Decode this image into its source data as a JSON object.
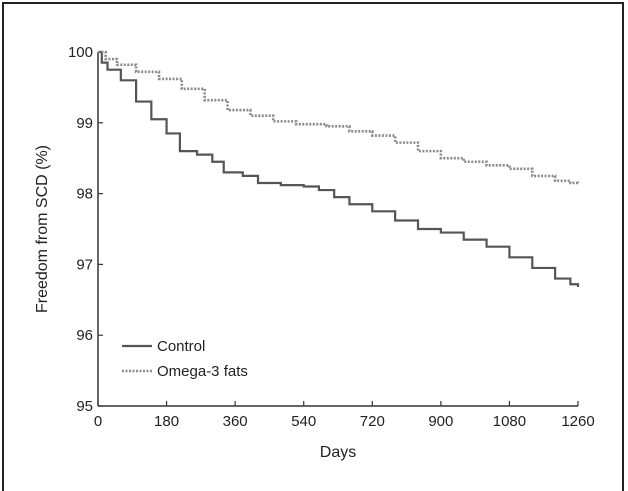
{
  "chart_data": {
    "type": "line",
    "title": "",
    "xlabel": "Days",
    "ylabel": "Freedom from SCD (%)",
    "xlim": [
      0,
      1260
    ],
    "ylim": [
      95,
      100
    ],
    "xticks": [
      0,
      180,
      360,
      540,
      720,
      900,
      1080,
      1260
    ],
    "yticks": [
      95,
      96,
      97,
      98,
      99,
      100
    ],
    "grid": false,
    "legend_position": "bottom-left",
    "series": [
      {
        "name": "Control",
        "color": "#555555",
        "style": "solid",
        "x": [
          0,
          10,
          25,
          60,
          100,
          140,
          180,
          215,
          260,
          300,
          330,
          380,
          420,
          480,
          540,
          580,
          620,
          660,
          720,
          780,
          840,
          900,
          960,
          1020,
          1080,
          1140,
          1200,
          1240,
          1260
        ],
        "y": [
          100,
          99.85,
          99.75,
          99.6,
          99.3,
          99.05,
          98.85,
          98.6,
          98.55,
          98.45,
          98.3,
          98.25,
          98.15,
          98.12,
          98.1,
          98.05,
          97.95,
          97.85,
          97.75,
          97.62,
          97.5,
          97.45,
          97.35,
          97.25,
          97.1,
          96.95,
          96.8,
          96.72,
          96.68
        ]
      },
      {
        "name": "Omega-3 fats",
        "color": "#8a8a8a",
        "style": "dotted",
        "x": [
          0,
          20,
          50,
          100,
          160,
          220,
          280,
          340,
          400,
          460,
          520,
          600,
          660,
          720,
          780,
          840,
          900,
          960,
          1020,
          1080,
          1140,
          1200,
          1240,
          1260
        ],
        "y": [
          100,
          99.9,
          99.82,
          99.72,
          99.62,
          99.48,
          99.32,
          99.18,
          99.1,
          99.02,
          98.98,
          98.95,
          98.88,
          98.82,
          98.72,
          98.6,
          98.5,
          98.45,
          98.4,
          98.35,
          98.25,
          98.18,
          98.15,
          98.14
        ]
      }
    ]
  }
}
